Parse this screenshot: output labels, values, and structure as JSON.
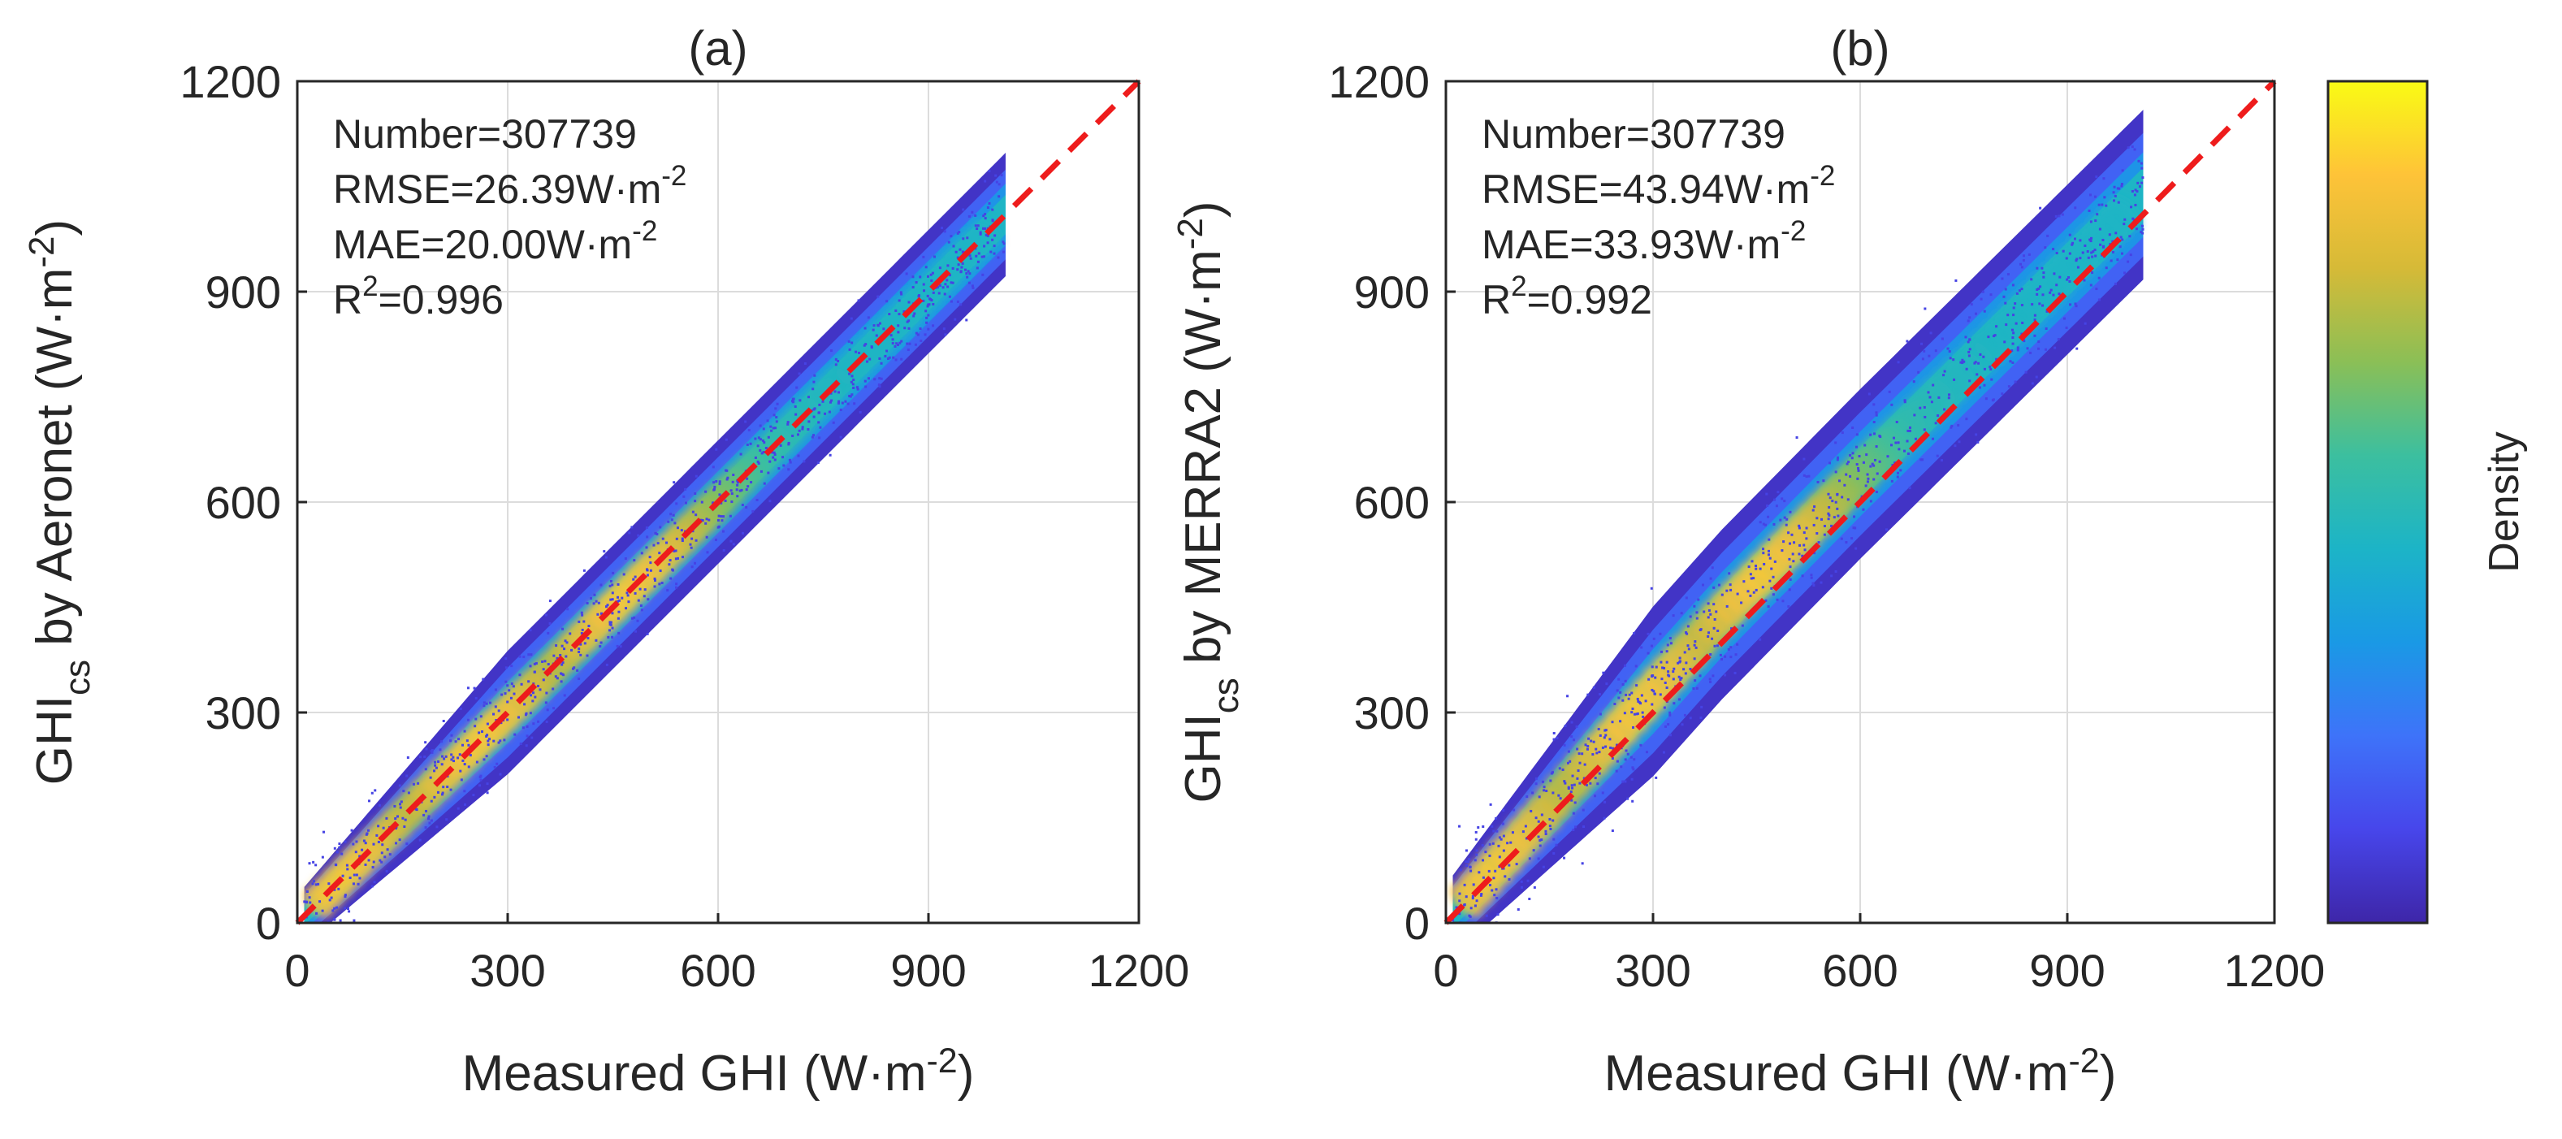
{
  "chart_data": [
    {
      "type": "scatter",
      "title": "(a)",
      "xlabel": "Measured GHI (W·m-2)",
      "ylabel": "GHIcs by Aeronet (W·m-2)",
      "xlim": [
        0,
        1200
      ],
      "ylim": [
        0,
        1200
      ],
      "xticks": [
        0,
        300,
        600,
        900,
        1200
      ],
      "yticks": [
        0,
        300,
        600,
        900,
        1200
      ],
      "grid": true,
      "reference_line": {
        "x": [
          0,
          1200
        ],
        "y": [
          0,
          1200
        ],
        "style": "dashed",
        "color": "#ee1c1c"
      },
      "stats": {
        "number": "Number=307739",
        "rmse": "RMSE=26.39W·m-2",
        "mae": "MAE=20.00W·m-2",
        "r2": "R2=0.996"
      },
      "cloud": {
        "slope": 1.0,
        "intercept": 0,
        "spread": 40,
        "xmin": 10,
        "xmax": 1010,
        "hot_x": [
          60,
          260,
          470
        ]
      }
    },
    {
      "type": "scatter",
      "title": "(b)",
      "xlabel": "Measured GHI (W·m-2)",
      "ylabel": "GHIcs by MERRA2 (W·m-2)",
      "xlim": [
        0,
        1200
      ],
      "ylim": [
        0,
        1200
      ],
      "xticks": [
        0,
        300,
        600,
        900,
        1200
      ],
      "yticks": [
        0,
        300,
        600,
        900,
        1200
      ],
      "grid": true,
      "reference_line": {
        "x": [
          0,
          1200
        ],
        "y": [
          0,
          1200
        ],
        "style": "dashed",
        "color": "#ee1c1c"
      },
      "stats": {
        "number": "Number=307739",
        "rmse": "RMSE=43.94W·m-2",
        "mae": "MAE=33.93W·m-2",
        "r2": "R2=0.992"
      },
      "cloud": {
        "slope": 1.0,
        "intercept": 40,
        "spread": 55,
        "xmin": 10,
        "xmax": 1010,
        "hot_x": [
          70,
          280,
          460
        ]
      }
    }
  ],
  "colorbar": {
    "label": "Density",
    "colors": [
      "#3e26a8",
      "#4746eb",
      "#3e73f9",
      "#1a99e5",
      "#1cb4c7",
      "#3cbf9f",
      "#8bbf56",
      "#d6ba37",
      "#fec338",
      "#f9fb14"
    ]
  },
  "axis_units": {
    "base": "W·m",
    "exponent": "-2"
  }
}
